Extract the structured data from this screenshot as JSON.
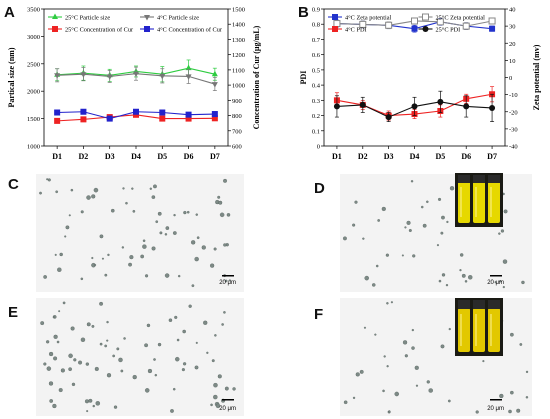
{
  "panels": {
    "A": {
      "letter": "A"
    },
    "B": {
      "letter": "B"
    },
    "C": {
      "letter": "C",
      "scalebar": "20 μm"
    },
    "D": {
      "letter": "D",
      "scalebar": "20 μm"
    },
    "E": {
      "letter": "E",
      "scalebar": "20 μm"
    },
    "F": {
      "letter": "F",
      "scalebar": "20 μm"
    }
  },
  "chart_data": [
    {
      "panel": "A",
      "type": "line",
      "categories": [
        "D1",
        "D2",
        "D3",
        "D4",
        "D5",
        "D6",
        "D7"
      ],
      "xlabel": "",
      "ylabel": "Partical size (nm)",
      "ylim": [
        1000,
        3500
      ],
      "yticks": [
        1000,
        1500,
        2000,
        2500,
        3000,
        3500
      ],
      "y2label": "Concentration of Cur (μg/mL)",
      "y2lim": [
        600,
        1500
      ],
      "y2ticks": [
        600,
        700,
        800,
        900,
        1000,
        1100,
        1200,
        1300,
        1400,
        1500
      ],
      "legend_position": "top",
      "series": [
        {
          "name": "25°C Particle size",
          "axis": "left",
          "color": "#2ecc40",
          "marker": "triangle-up",
          "values": [
            2300,
            2330,
            2290,
            2360,
            2310,
            2420,
            2310
          ],
          "errors": [
            110,
            130,
            110,
            100,
            140,
            150,
            110
          ]
        },
        {
          "name": "4°C Particle size",
          "axis": "left",
          "color": "#777777",
          "marker": "triangle-down",
          "values": [
            2290,
            2310,
            2270,
            2320,
            2280,
            2270,
            2130
          ],
          "errors": [
            120,
            120,
            110,
            120,
            130,
            130,
            120
          ]
        },
        {
          "name": "25°C Concentration of Cur",
          "axis": "right",
          "color": "#ee2222",
          "marker": "square",
          "values": [
            765,
            775,
            790,
            805,
            780,
            780,
            782
          ],
          "errors": [
            4,
            4,
            4,
            4,
            4,
            4,
            4
          ]
        },
        {
          "name": "4°C Concentration of Cur",
          "axis": "right",
          "color": "#2222cc",
          "marker": "square",
          "values": [
            820,
            825,
            780,
            825,
            820,
            806,
            810
          ],
          "errors": [
            4,
            4,
            4,
            4,
            4,
            4,
            4
          ]
        }
      ]
    },
    {
      "panel": "B",
      "type": "line",
      "categories": [
        "D1",
        "D2",
        "D3",
        "D4",
        "D5",
        "D6",
        "D7"
      ],
      "xlabel": "",
      "ylabel": "PDI",
      "ylim": [
        0,
        0.9
      ],
      "yticks": [
        0,
        0.1,
        0.2,
        0.3,
        0.4,
        0.5,
        0.6,
        0.7,
        0.8,
        0.9
      ],
      "y2label": "Zeta potential (mv)",
      "y2lim": [
        -40,
        40
      ],
      "y2ticks": [
        -40,
        -30,
        -20,
        -10,
        0,
        10,
        20,
        30,
        40
      ],
      "legend_position": "top",
      "series": [
        {
          "name": "4°C Zeta potential",
          "axis": "right",
          "color": "#2233cc",
          "marker": "square",
          "values": [
            31.5,
            31.0,
            30.5,
            28.5,
            32.5,
            30.0,
            28.5
          ],
          "errors": [
            2,
            2,
            2,
            2,
            2,
            2,
            1.5
          ]
        },
        {
          "name": "25°C Zeta potential",
          "axis": "right",
          "color": "#888888",
          "marker": "square-open",
          "values": [
            31.5,
            31.0,
            30.5,
            33.0,
            32.5,
            30.0,
            33.0
          ],
          "errors": [
            2,
            2,
            2,
            1.5,
            1.5,
            2,
            1.5
          ]
        },
        {
          "name": "4°C PDI",
          "axis": "left",
          "color": "#ee2222",
          "marker": "square",
          "values": [
            0.3,
            0.27,
            0.2,
            0.21,
            0.23,
            0.31,
            0.34
          ],
          "errors": [
            0.05,
            0.03,
            0.03,
            0.03,
            0.04,
            0.03,
            0.05
          ]
        },
        {
          "name": "25°C PDI",
          "axis": "left",
          "color": "#111111",
          "marker": "circle",
          "values": [
            0.26,
            0.27,
            0.19,
            0.26,
            0.29,
            0.26,
            0.25
          ],
          "errors": [
            0.07,
            0.05,
            0.03,
            0.06,
            0.07,
            0.07,
            0.09
          ]
        }
      ]
    }
  ]
}
